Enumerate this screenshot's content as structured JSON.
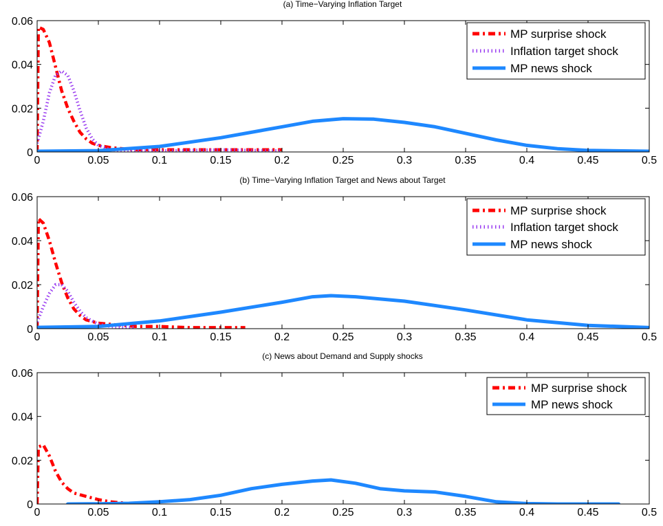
{
  "colors": {
    "surprise": "#ff0000",
    "inflation_target": "#9a3cf0",
    "news": "#1e88ff",
    "axis": "#000000",
    "background": "#ffffff"
  },
  "chart_data": [
    {
      "type": "line",
      "title": "(a) Time−Varying Inflation Target",
      "xlabel": "",
      "ylabel": "",
      "xlim": [
        0,
        0.5
      ],
      "ylim": [
        0,
        0.06
      ],
      "xticks": [
        "0",
        "0.05",
        "0.1",
        "0.15",
        "0.2",
        "0.25",
        "0.3",
        "0.35",
        "0.4",
        "0.45",
        "0.5"
      ],
      "yticks": [
        "0",
        "0.02",
        "0.04",
        "0.06"
      ],
      "grid": false,
      "legend_position": "top-right",
      "series": [
        {
          "name": "MP surprise shock",
          "style": "dash-dot",
          "color": "#ff0000",
          "points": [
            [
              0.0,
              0.0
            ],
            [
              0.001,
              0.057
            ],
            [
              0.005,
              0.056
            ],
            [
              0.01,
              0.05
            ],
            [
              0.015,
              0.039
            ],
            [
              0.02,
              0.028
            ],
            [
              0.025,
              0.02
            ],
            [
              0.03,
              0.014
            ],
            [
              0.035,
              0.009
            ],
            [
              0.04,
              0.006
            ],
            [
              0.045,
              0.004
            ],
            [
              0.05,
              0.003
            ],
            [
              0.06,
              0.002
            ],
            [
              0.08,
              0.001
            ],
            [
              0.1,
              0.001
            ],
            [
              0.13,
              0.001
            ],
            [
              0.16,
              0.001
            ],
            [
              0.18,
              0.001
            ],
            [
              0.2,
              0.001
            ]
          ]
        },
        {
          "name": "Inflation target shock",
          "style": "dotted",
          "color": "#9a3cf0",
          "points": [
            [
              0.0,
              0.004
            ],
            [
              0.005,
              0.014
            ],
            [
              0.01,
              0.027
            ],
            [
              0.015,
              0.035
            ],
            [
              0.02,
              0.037
            ],
            [
              0.025,
              0.035
            ],
            [
              0.03,
              0.028
            ],
            [
              0.035,
              0.019
            ],
            [
              0.04,
              0.011
            ],
            [
              0.045,
              0.006
            ],
            [
              0.05,
              0.003
            ],
            [
              0.06,
              0.001
            ],
            [
              0.08,
              0.0005
            ],
            [
              0.1,
              0.0005
            ],
            [
              0.15,
              0.001
            ],
            [
              0.2,
              0.0005
            ]
          ]
        },
        {
          "name": "MP news shock",
          "style": "solid",
          "color": "#1e88ff",
          "points": [
            [
              0.0,
              0.0003
            ],
            [
              0.05,
              0.0006
            ],
            [
              0.1,
              0.0025
            ],
            [
              0.15,
              0.0065
            ],
            [
              0.2,
              0.0115
            ],
            [
              0.225,
              0.014
            ],
            [
              0.25,
              0.0152
            ],
            [
              0.275,
              0.015
            ],
            [
              0.3,
              0.0135
            ],
            [
              0.325,
              0.0115
            ],
            [
              0.35,
              0.0085
            ],
            [
              0.375,
              0.0055
            ],
            [
              0.4,
              0.003
            ],
            [
              0.425,
              0.0015
            ],
            [
              0.45,
              0.0007
            ],
            [
              0.5,
              0.0003
            ]
          ]
        }
      ]
    },
    {
      "type": "line",
      "title": "(b) Time−Varying Inflation Target and News about Target",
      "xlabel": "",
      "ylabel": "",
      "xlim": [
        0,
        0.5
      ],
      "ylim": [
        0,
        0.06
      ],
      "xticks": [
        "0",
        "0.05",
        "0.1",
        "0.15",
        "0.2",
        "0.25",
        "0.3",
        "0.35",
        "0.4",
        "0.45",
        "0.5"
      ],
      "yticks": [
        "0",
        "0.02",
        "0.04",
        "0.06"
      ],
      "grid": false,
      "legend_position": "top-right",
      "series": [
        {
          "name": "MP surprise shock",
          "style": "dash-dot",
          "color": "#ff0000",
          "points": [
            [
              0.0,
              0.0
            ],
            [
              0.001,
              0.05
            ],
            [
              0.005,
              0.048
            ],
            [
              0.01,
              0.04
            ],
            [
              0.015,
              0.03
            ],
            [
              0.02,
              0.021
            ],
            [
              0.025,
              0.014
            ],
            [
              0.03,
              0.009
            ],
            [
              0.035,
              0.006
            ],
            [
              0.04,
              0.004
            ],
            [
              0.05,
              0.0025
            ],
            [
              0.06,
              0.002
            ],
            [
              0.08,
              0.001
            ],
            [
              0.1,
              0.001
            ],
            [
              0.125,
              0.0005
            ],
            [
              0.15,
              0.0005
            ],
            [
              0.17,
              0.0005
            ]
          ]
        },
        {
          "name": "Inflation target shock",
          "style": "dotted",
          "color": "#9a3cf0",
          "points": [
            [
              0.0,
              0.003
            ],
            [
              0.005,
              0.01
            ],
            [
              0.01,
              0.016
            ],
            [
              0.015,
              0.02
            ],
            [
              0.02,
              0.02
            ],
            [
              0.025,
              0.017
            ],
            [
              0.03,
              0.012
            ],
            [
              0.035,
              0.008
            ],
            [
              0.04,
              0.005
            ],
            [
              0.05,
              0.002
            ],
            [
              0.06,
              0.001
            ],
            [
              0.08,
              0.0005
            ]
          ]
        },
        {
          "name": "MP news shock",
          "style": "solid",
          "color": "#1e88ff",
          "points": [
            [
              0.0,
              0.0006
            ],
            [
              0.05,
              0.001
            ],
            [
              0.1,
              0.0035
            ],
            [
              0.15,
              0.0075
            ],
            [
              0.2,
              0.012
            ],
            [
              0.225,
              0.0145
            ],
            [
              0.24,
              0.015
            ],
            [
              0.26,
              0.0145
            ],
            [
              0.3,
              0.0125
            ],
            [
              0.35,
              0.0085
            ],
            [
              0.4,
              0.004
            ],
            [
              0.45,
              0.0015
            ],
            [
              0.5,
              0.0005
            ]
          ]
        }
      ]
    },
    {
      "type": "line",
      "title": "(c) News about Demand and Supply shocks",
      "xlabel": "",
      "ylabel": "",
      "xlim": [
        0,
        0.5
      ],
      "ylim": [
        0,
        0.06
      ],
      "xticks": [
        "0",
        "0.05",
        "0.1",
        "0.15",
        "0.2",
        "0.25",
        "0.3",
        "0.35",
        "0.4",
        "0.45",
        "0.5"
      ],
      "yticks": [
        "0",
        "0.02",
        "0.04",
        "0.06"
      ],
      "grid": false,
      "legend_position": "top-right",
      "series": [
        {
          "name": "MP surprise shock",
          "style": "dash-dot",
          "color": "#ff0000",
          "points": [
            [
              0.0,
              0.0
            ],
            [
              0.001,
              0.026
            ],
            [
              0.005,
              0.027
            ],
            [
              0.01,
              0.022
            ],
            [
              0.015,
              0.015
            ],
            [
              0.02,
              0.01
            ],
            [
              0.025,
              0.007
            ],
            [
              0.03,
              0.005
            ],
            [
              0.04,
              0.0035
            ],
            [
              0.05,
              0.002
            ],
            [
              0.06,
              0.001
            ],
            [
              0.07,
              0.0005
            ]
          ]
        },
        {
          "name": "MP news shock",
          "style": "solid",
          "color": "#1e88ff",
          "points": [
            [
              0.025,
              0.0
            ],
            [
              0.05,
              0.0001
            ],
            [
              0.075,
              0.0003
            ],
            [
              0.1,
              0.001
            ],
            [
              0.125,
              0.002
            ],
            [
              0.15,
              0.004
            ],
            [
              0.175,
              0.007
            ],
            [
              0.2,
              0.009
            ],
            [
              0.225,
              0.0105
            ],
            [
              0.24,
              0.011
            ],
            [
              0.26,
              0.0095
            ],
            [
              0.28,
              0.007
            ],
            [
              0.3,
              0.006
            ],
            [
              0.325,
              0.0055
            ],
            [
              0.35,
              0.0035
            ],
            [
              0.375,
              0.001
            ],
            [
              0.4,
              0.0002
            ],
            [
              0.425,
              0.0
            ],
            [
              0.475,
              0.0
            ]
          ]
        }
      ]
    }
  ]
}
